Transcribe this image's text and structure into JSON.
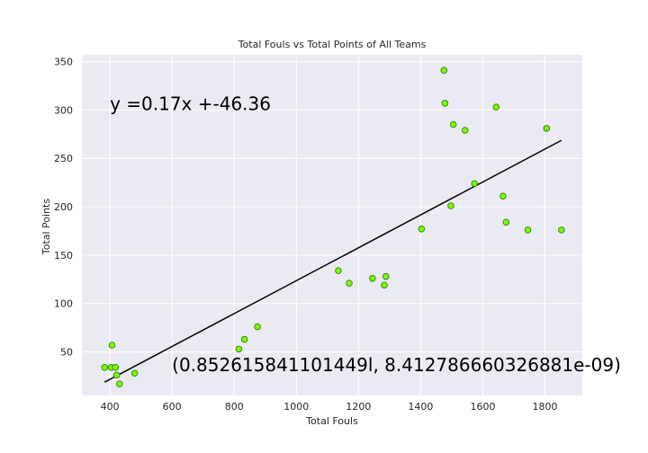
{
  "chart_data": {
    "type": "scatter",
    "title": "Total Fouls vs Total Points of All Teams",
    "xlabel": "Total Fouls",
    "ylabel": "Total Points",
    "xlim": [
      310,
      1920
    ],
    "ylim": [
      5,
      357
    ],
    "xticks": [
      400,
      600,
      800,
      1000,
      1200,
      1400,
      1600,
      1800
    ],
    "yticks": [
      50,
      100,
      150,
      200,
      250,
      300,
      350
    ],
    "grid": true,
    "colors": {
      "background": "#eaeaf2",
      "grid": "#ffffff",
      "marker_fill": "#7cfc00",
      "marker_edge": "#2e7d0f",
      "regression_line": "#000000"
    },
    "series": [
      {
        "points": [
          {
            "x": 383,
            "y": 34
          },
          {
            "x": 404,
            "y": 34
          },
          {
            "x": 407,
            "y": 57
          },
          {
            "x": 418,
            "y": 34
          },
          {
            "x": 422,
            "y": 26
          },
          {
            "x": 431,
            "y": 17
          },
          {
            "x": 480,
            "y": 28
          },
          {
            "x": 815,
            "y": 53
          },
          {
            "x": 833,
            "y": 63
          },
          {
            "x": 875,
            "y": 76
          },
          {
            "x": 1135,
            "y": 134
          },
          {
            "x": 1170,
            "y": 121
          },
          {
            "x": 1245,
            "y": 126
          },
          {
            "x": 1283,
            "y": 119
          },
          {
            "x": 1288,
            "y": 128
          },
          {
            "x": 1403,
            "y": 177
          },
          {
            "x": 1475,
            "y": 341
          },
          {
            "x": 1478,
            "y": 307
          },
          {
            "x": 1497,
            "y": 201
          },
          {
            "x": 1505,
            "y": 285
          },
          {
            "x": 1543,
            "y": 279
          },
          {
            "x": 1573,
            "y": 224
          },
          {
            "x": 1643,
            "y": 303
          },
          {
            "x": 1665,
            "y": 211
          },
          {
            "x": 1675,
            "y": 184
          },
          {
            "x": 1745,
            "y": 176
          },
          {
            "x": 1805,
            "y": 281
          },
          {
            "x": 1853,
            "y": 176
          }
        ]
      }
    ],
    "regression": {
      "slope": 0.17,
      "intercept": -46.36,
      "x_range": [
        383,
        1853
      ]
    },
    "annotations": [
      {
        "text": "y =0.17x +-46.36",
        "x": 400,
        "y": 300
      },
      {
        "text": "(0.852615841101449l, 8.412786660326881e-09)",
        "x": 600,
        "y": 30
      }
    ]
  }
}
